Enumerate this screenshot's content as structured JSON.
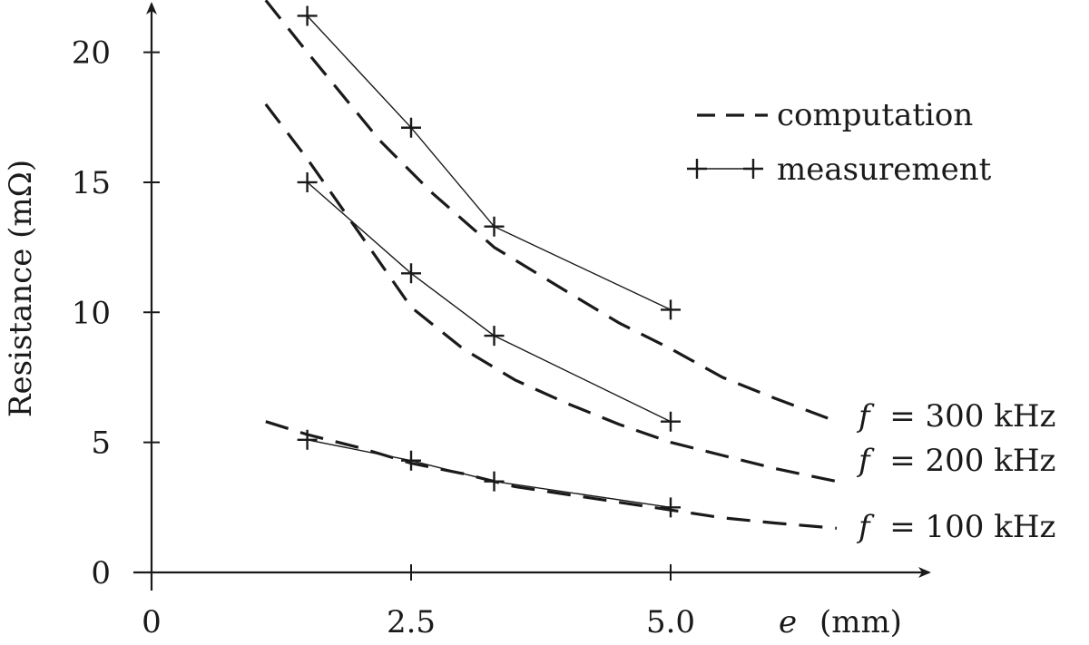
{
  "chart_data": {
    "type": "line",
    "title": "",
    "xlabel": {
      "var": "e",
      "unit": "(mm)"
    },
    "ylabel": "Resistance (mΩ)",
    "xlim": [
      0,
      6.5
    ],
    "ylim": [
      0,
      22
    ],
    "x_ticks": [
      {
        "value": 0,
        "label": "0"
      },
      {
        "value": 2.5,
        "label": "2.5"
      },
      {
        "value": 5.0,
        "label": "5.0"
      }
    ],
    "y_ticks": [
      {
        "value": 0,
        "label": "0"
      },
      {
        "value": 5,
        "label": "5"
      },
      {
        "value": 10,
        "label": "10"
      },
      {
        "value": 15,
        "label": "15"
      },
      {
        "value": 20,
        "label": "20"
      }
    ],
    "grid": false,
    "legend_position": "top-right",
    "legend": [
      {
        "label": "computation",
        "style": "dashed"
      },
      {
        "label": "measurement",
        "style": "solid-plus"
      }
    ],
    "curve_labels": [
      {
        "var": "f",
        "text": " = 300 kHz",
        "anchor_y": 5.8
      },
      {
        "var": "f",
        "text": " = 200 kHz",
        "anchor_y": 3.3
      },
      {
        "var": "f",
        "text": " = 100 kHz",
        "anchor_y": 1.4
      }
    ],
    "series": [
      {
        "kind": "computation",
        "group": "300 kHz",
        "x": [
          1.1,
          1.5,
          2.2,
          2.7,
          3.3,
          4.0,
          4.5,
          5.0,
          5.5,
          6.0,
          6.6
        ],
        "y": [
          22.0,
          20.0,
          16.6,
          14.6,
          12.5,
          10.8,
          9.6,
          8.6,
          7.5,
          6.7,
          5.8
        ]
      },
      {
        "kind": "computation",
        "group": "200 kHz",
        "x": [
          1.1,
          1.5,
          1.8,
          2.5,
          3.0,
          3.5,
          4.0,
          4.5,
          5.0,
          5.5,
          6.0,
          6.6
        ],
        "y": [
          18.0,
          15.9,
          14.2,
          10.2,
          8.6,
          7.4,
          6.5,
          5.7,
          5.0,
          4.5,
          4.0,
          3.5
        ]
      },
      {
        "kind": "computation",
        "group": "100 kHz",
        "x": [
          1.1,
          1.5,
          2.0,
          2.5,
          3.0,
          3.5,
          4.0,
          4.5,
          5.0,
          5.5,
          6.0,
          6.6
        ],
        "y": [
          5.8,
          5.3,
          4.8,
          4.2,
          3.8,
          3.3,
          3.0,
          2.7,
          2.4,
          2.1,
          1.9,
          1.7
        ]
      },
      {
        "kind": "measurement",
        "group": "300 kHz",
        "x": [
          1.5,
          2.5,
          3.3,
          5.0
        ],
        "y": [
          21.4,
          17.1,
          13.3,
          10.1
        ]
      },
      {
        "kind": "measurement",
        "group": "200 kHz",
        "x": [
          1.5,
          2.5,
          3.3,
          5.0
        ],
        "y": [
          15.0,
          11.5,
          9.1,
          5.8
        ]
      },
      {
        "kind": "measurement",
        "group": "100 kHz",
        "x": [
          1.5,
          2.5,
          3.3,
          5.0
        ],
        "y": [
          5.1,
          4.3,
          3.5,
          2.5
        ]
      }
    ]
  }
}
